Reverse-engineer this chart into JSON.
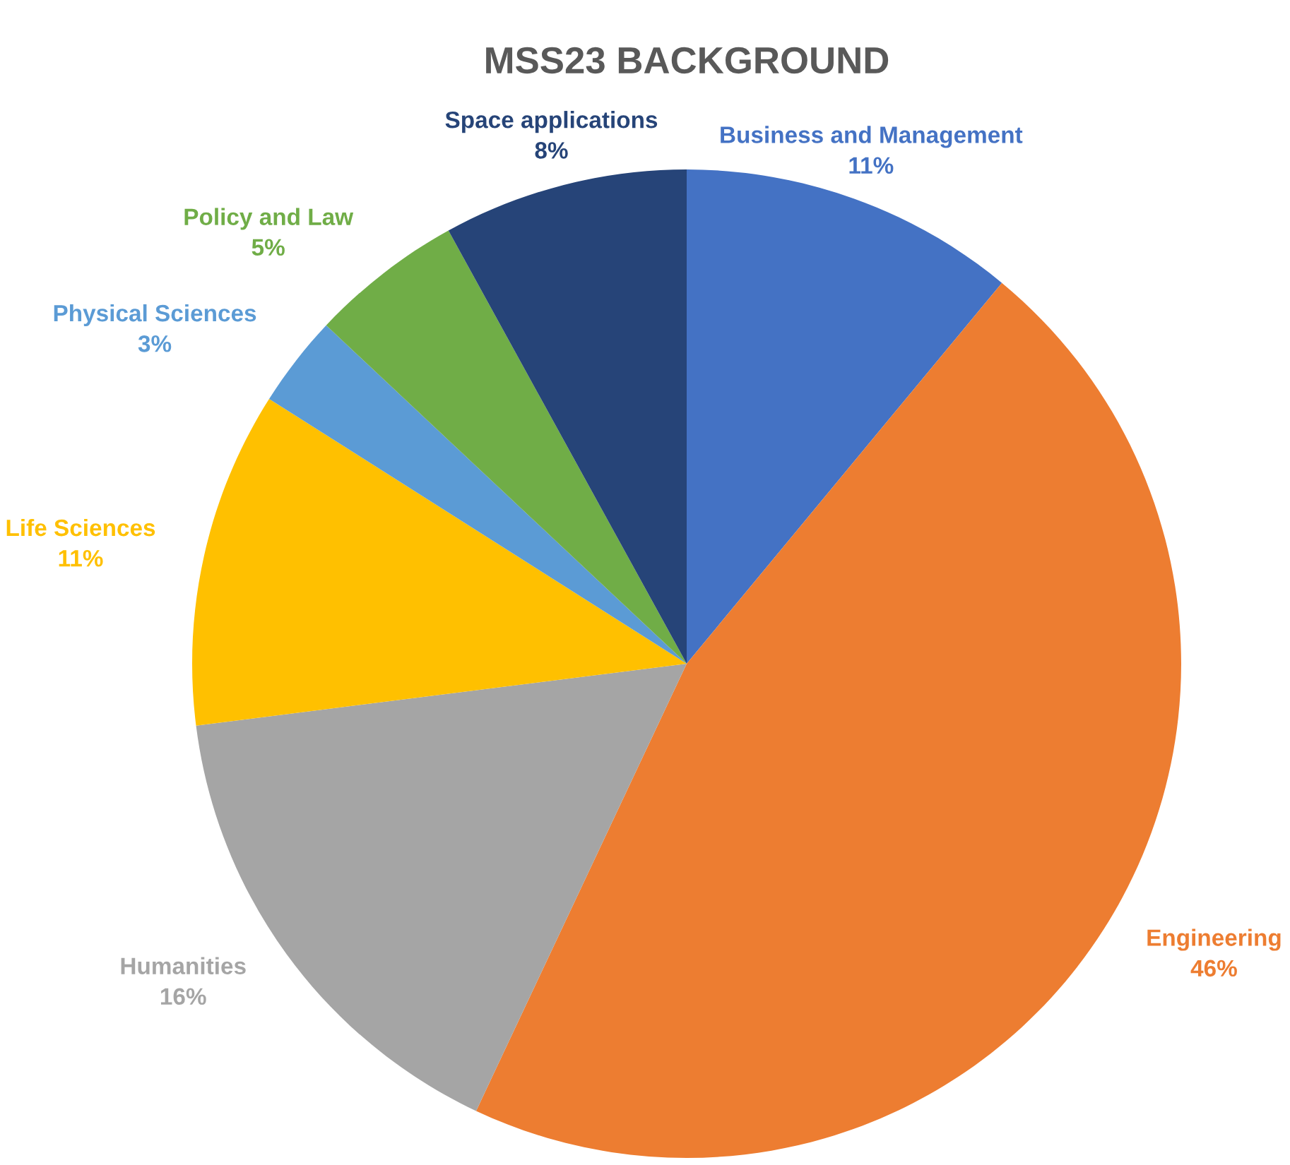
{
  "chart_data": {
    "type": "pie",
    "title": "MSS23 BACKGROUND",
    "categories": [
      "Business and Management",
      "Engineering",
      "Humanities",
      "Life Sciences",
      "Physical Sciences",
      "Policy and Law",
      "Space applications"
    ],
    "values": [
      11,
      46,
      16,
      11,
      3,
      5,
      8
    ],
    "colors": [
      "#4472c4",
      "#ed7d31",
      "#a5a5a5",
      "#ffc000",
      "#5b9bd5",
      "#70ad47",
      "#264478"
    ],
    "value_labels": [
      "11%",
      "46%",
      "16%",
      "11%",
      "3%",
      "5%",
      "8%"
    ]
  }
}
